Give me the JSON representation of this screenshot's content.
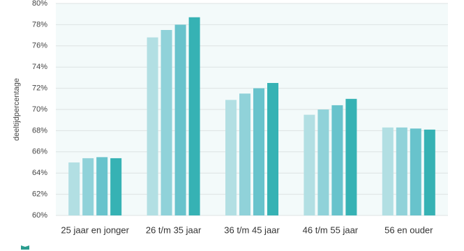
{
  "chart_data": {
    "type": "bar",
    "y_label": "deeltijdpercentage",
    "categories": [
      "25 jaar en jonger",
      "26 t/m 35 jaar",
      "36 t/m 45 jaar",
      "46 t/m 55 jaar",
      "56 en ouder"
    ],
    "series": [
      {
        "color": "#b2dfe3",
        "values": [
          65.0,
          76.8,
          70.9,
          69.5,
          68.3
        ]
      },
      {
        "color": "#90d2d9",
        "values": [
          65.4,
          77.5,
          71.5,
          70.0,
          68.3
        ]
      },
      {
        "color": "#68c3cc",
        "values": [
          65.5,
          78.0,
          72.0,
          70.4,
          68.2
        ]
      },
      {
        "color": "#36b2b4",
        "values": [
          65.4,
          78.7,
          72.5,
          71.0,
          68.1
        ]
      }
    ],
    "ylim": [
      60,
      80
    ],
    "yticks": [
      {
        "value": 60,
        "label": "60%"
      },
      {
        "value": 62,
        "label": "62%"
      },
      {
        "value": 64,
        "label": "64%"
      },
      {
        "value": 66,
        "label": "66%"
      },
      {
        "value": 68,
        "label": "68%"
      },
      {
        "value": 70,
        "label": "70%"
      },
      {
        "value": 72,
        "label": "72%"
      },
      {
        "value": 74,
        "label": "74%"
      },
      {
        "value": 76,
        "label": "76%"
      },
      {
        "value": 78,
        "label": "78%"
      },
      {
        "value": 80,
        "label": "80%"
      }
    ],
    "grid": true
  }
}
